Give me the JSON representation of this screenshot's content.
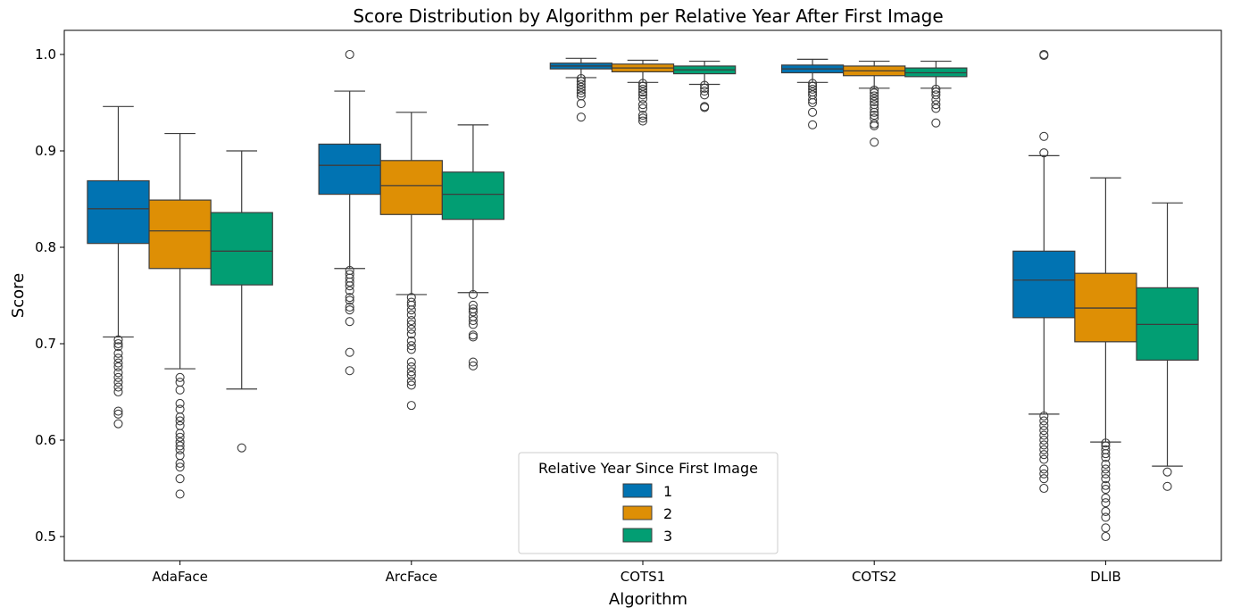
{
  "chart_data": {
    "type": "box",
    "title": "Score Distribution by Algorithm per Relative Year After First Image",
    "xlabel": "Algorithm",
    "ylabel": "Score",
    "ylim": [
      0.475,
      1.025
    ],
    "yticks": [
      "0.5",
      "0.6",
      "0.7",
      "0.8",
      "0.9",
      "1.0"
    ],
    "categories": [
      "AdaFace",
      "ArcFace",
      "COTS1",
      "COTS2",
      "DLIB"
    ],
    "legend": {
      "title": "Relative Year Since First Image",
      "placement": "lower-center",
      "entries": [
        "1",
        "2",
        "3"
      ]
    },
    "series": [
      {
        "name": "1",
        "color": "#0173b2",
        "boxes": [
          {
            "whislo": 0.707,
            "q1": 0.804,
            "med": 0.84,
            "q3": 0.869,
            "whishi": 0.946,
            "fliers": [
              0.704,
              0.7,
              0.697,
              0.69,
              0.685,
              0.68,
              0.676,
              0.67,
              0.665,
              0.66,
              0.655,
              0.65,
              0.63,
              0.627,
              0.617
            ]
          },
          {
            "whislo": 0.778,
            "q1": 0.855,
            "med": 0.885,
            "q3": 0.907,
            "whishi": 0.962,
            "fliers": [
              1.0,
              0.776,
              0.772,
              0.768,
              0.764,
              0.76,
              0.755,
              0.748,
              0.745,
              0.738,
              0.735,
              0.723,
              0.691,
              0.672
            ]
          },
          {
            "whislo": 0.976,
            "q1": 0.985,
            "med": 0.988,
            "q3": 0.991,
            "whishi": 0.996,
            "fliers": [
              0.975,
              0.972,
              0.969,
              0.966,
              0.963,
              0.96,
              0.957,
              0.949,
              0.935
            ]
          },
          {
            "whislo": 0.971,
            "q1": 0.981,
            "med": 0.985,
            "q3": 0.989,
            "whishi": 0.995,
            "fliers": [
              0.97,
              0.967,
              0.964,
              0.961,
              0.958,
              0.953,
              0.95,
              0.94,
              0.927
            ]
          },
          {
            "whislo": 0.627,
            "q1": 0.727,
            "med": 0.766,
            "q3": 0.796,
            "whishi": 0.895,
            "fliers": [
              1.0,
              0.999,
              0.915,
              0.898,
              0.625,
              0.62,
              0.615,
              0.61,
              0.605,
              0.6,
              0.595,
              0.59,
              0.585,
              0.58,
              0.57,
              0.565,
              0.56,
              0.55
            ]
          }
        ]
      },
      {
        "name": "2",
        "color": "#de8f05",
        "boxes": [
          {
            "whislo": 0.674,
            "q1": 0.778,
            "med": 0.817,
            "q3": 0.849,
            "whishi": 0.918,
            "fliers": [
              0.665,
              0.66,
              0.652,
              0.638,
              0.632,
              0.624,
              0.62,
              0.615,
              0.607,
              0.603,
              0.598,
              0.594,
              0.59,
              0.584,
              0.576,
              0.572,
              0.56,
              0.544
            ]
          },
          {
            "whislo": 0.751,
            "q1": 0.834,
            "med": 0.864,
            "q3": 0.89,
            "whishi": 0.94,
            "fliers": [
              0.748,
              0.743,
              0.74,
              0.735,
              0.73,
              0.724,
              0.72,
              0.715,
              0.71,
              0.703,
              0.698,
              0.694,
              0.681,
              0.676,
              0.671,
              0.667,
              0.661,
              0.657,
              0.636
            ]
          },
          {
            "whislo": 0.971,
            "q1": 0.982,
            "med": 0.986,
            "q3": 0.99,
            "whishi": 0.994,
            "fliers": [
              0.97,
              0.967,
              0.964,
              0.961,
              0.958,
              0.954,
              0.948,
              0.944,
              0.937,
              0.934,
              0.931
            ]
          },
          {
            "whislo": 0.965,
            "q1": 0.978,
            "med": 0.983,
            "q3": 0.988,
            "whishi": 0.993,
            "fliers": [
              0.963,
              0.96,
              0.957,
              0.954,
              0.951,
              0.948,
              0.944,
              0.94,
              0.937,
              0.934,
              0.928,
              0.926,
              0.909
            ]
          },
          {
            "whislo": 0.598,
            "q1": 0.702,
            "med": 0.737,
            "q3": 0.773,
            "whishi": 0.872,
            "fliers": [
              0.597,
              0.594,
              0.59,
              0.586,
              0.582,
              0.575,
              0.57,
              0.565,
              0.56,
              0.553,
              0.549,
              0.54,
              0.535,
              0.526,
              0.52,
              0.509,
              0.5
            ]
          }
        ]
      },
      {
        "name": "3",
        "color": "#029e73",
        "boxes": [
          {
            "whislo": 0.653,
            "q1": 0.761,
            "med": 0.796,
            "q3": 0.836,
            "whishi": 0.9,
            "fliers": [
              0.592
            ]
          },
          {
            "whislo": 0.753,
            "q1": 0.829,
            "med": 0.855,
            "q3": 0.878,
            "whishi": 0.927,
            "fliers": [
              0.751,
              0.74,
              0.736,
              0.733,
              0.728,
              0.724,
              0.72,
              0.709,
              0.707,
              0.681,
              0.677
            ]
          },
          {
            "whislo": 0.969,
            "q1": 0.98,
            "med": 0.984,
            "q3": 0.988,
            "whishi": 0.993,
            "fliers": [
              0.968,
              0.965,
              0.962,
              0.958,
              0.946,
              0.945
            ]
          },
          {
            "whislo": 0.965,
            "q1": 0.977,
            "med": 0.981,
            "q3": 0.986,
            "whishi": 0.993,
            "fliers": [
              0.964,
              0.961,
              0.958,
              0.953,
              0.948,
              0.944,
              0.929
            ]
          },
          {
            "whislo": 0.573,
            "q1": 0.683,
            "med": 0.72,
            "q3": 0.758,
            "whishi": 0.846,
            "fliers": [
              0.567,
              0.552
            ]
          }
        ]
      }
    ]
  }
}
